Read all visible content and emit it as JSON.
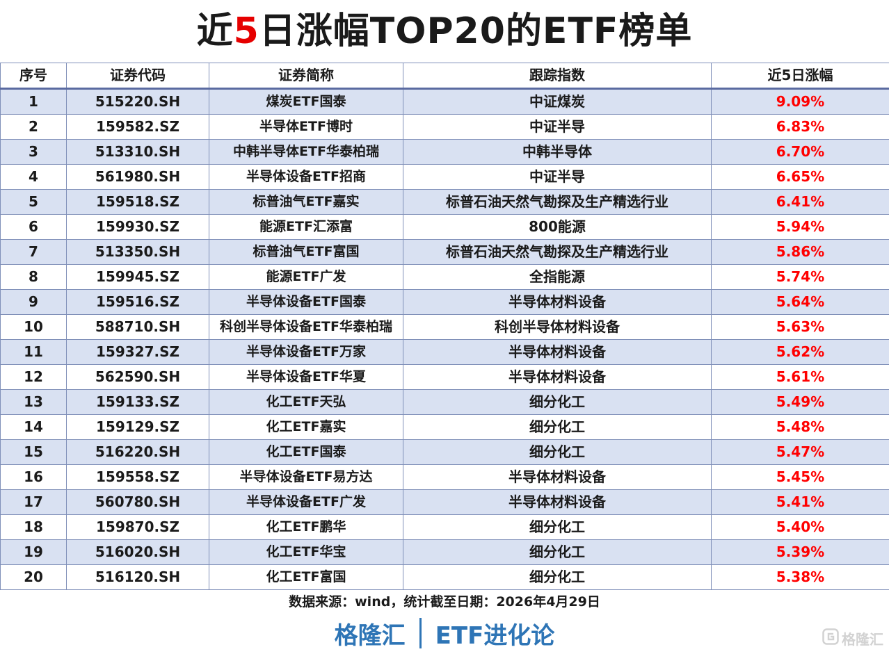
{
  "title": {
    "prefix": "近",
    "highlight": "5",
    "suffix": "日涨幅TOP20的ETF榜单"
  },
  "columns": {
    "rank": "序号",
    "code": "证券代码",
    "name": "证券简称",
    "index": "跟踪指数",
    "change": "近5日涨幅"
  },
  "rows": [
    {
      "rank": "1",
      "code": "515220.SH",
      "name": "煤炭ETF国泰",
      "index": "中证煤炭",
      "change": "9.09%"
    },
    {
      "rank": "2",
      "code": "159582.SZ",
      "name": "半导体ETF博时",
      "index": "中证半导",
      "change": "6.83%"
    },
    {
      "rank": "3",
      "code": "513310.SH",
      "name": "中韩半导体ETF华泰柏瑞",
      "index": "中韩半导体",
      "change": "6.70%"
    },
    {
      "rank": "4",
      "code": "561980.SH",
      "name": "半导体设备ETF招商",
      "index": "中证半导",
      "change": "6.65%"
    },
    {
      "rank": "5",
      "code": "159518.SZ",
      "name": "标普油气ETF嘉实",
      "index": "标普石油天然气勘探及生产精选行业",
      "change": "6.41%"
    },
    {
      "rank": "6",
      "code": "159930.SZ",
      "name": "能源ETF汇添富",
      "index": "800能源",
      "change": "5.94%"
    },
    {
      "rank": "7",
      "code": "513350.SH",
      "name": "标普油气ETF富国",
      "index": "标普石油天然气勘探及生产精选行业",
      "change": "5.86%"
    },
    {
      "rank": "8",
      "code": "159945.SZ",
      "name": "能源ETF广发",
      "index": "全指能源",
      "change": "5.74%"
    },
    {
      "rank": "9",
      "code": "159516.SZ",
      "name": "半导体设备ETF国泰",
      "index": "半导体材料设备",
      "change": "5.64%"
    },
    {
      "rank": "10",
      "code": "588710.SH",
      "name": "科创半导体设备ETF华泰柏瑞",
      "index": "科创半导体材料设备",
      "change": "5.63%"
    },
    {
      "rank": "11",
      "code": "159327.SZ",
      "name": "半导体设备ETF万家",
      "index": "半导体材料设备",
      "change": "5.62%"
    },
    {
      "rank": "12",
      "code": "562590.SH",
      "name": "半导体设备ETF华夏",
      "index": "半导体材料设备",
      "change": "5.61%"
    },
    {
      "rank": "13",
      "code": "159133.SZ",
      "name": "化工ETF天弘",
      "index": "细分化工",
      "change": "5.49%"
    },
    {
      "rank": "14",
      "code": "159129.SZ",
      "name": "化工ETF嘉实",
      "index": "细分化工",
      "change": "5.48%"
    },
    {
      "rank": "15",
      "code": "516220.SH",
      "name": "化工ETF国泰",
      "index": "细分化工",
      "change": "5.47%"
    },
    {
      "rank": "16",
      "code": "159558.SZ",
      "name": "半导体设备ETF易方达",
      "index": "半导体材料设备",
      "change": "5.45%"
    },
    {
      "rank": "17",
      "code": "560780.SH",
      "name": "半导体设备ETF广发",
      "index": "半导体材料设备",
      "change": "5.41%"
    },
    {
      "rank": "18",
      "code": "159870.SZ",
      "name": "化工ETF鹏华",
      "index": "细分化工",
      "change": "5.40%"
    },
    {
      "rank": "19",
      "code": "516020.SH",
      "name": "化工ETF华宝",
      "index": "细分化工",
      "change": "5.39%"
    },
    {
      "rank": "20",
      "code": "516120.SH",
      "name": "化工ETF富国",
      "index": "细分化工",
      "change": "5.38%"
    }
  ],
  "source_note": "数据来源：wind，统计截至日期：2026年4月29日",
  "footer": {
    "brand": "格隆汇",
    "column": "ETF进化论"
  },
  "watermark": {
    "text": "格隆汇",
    "icon": "gelonghui-logo-icon"
  },
  "colors": {
    "change_text": "#ff0000",
    "title_highlight": "#e60000",
    "row_stripe": "#d9e1f2",
    "footer_text": "#2e75b6"
  }
}
